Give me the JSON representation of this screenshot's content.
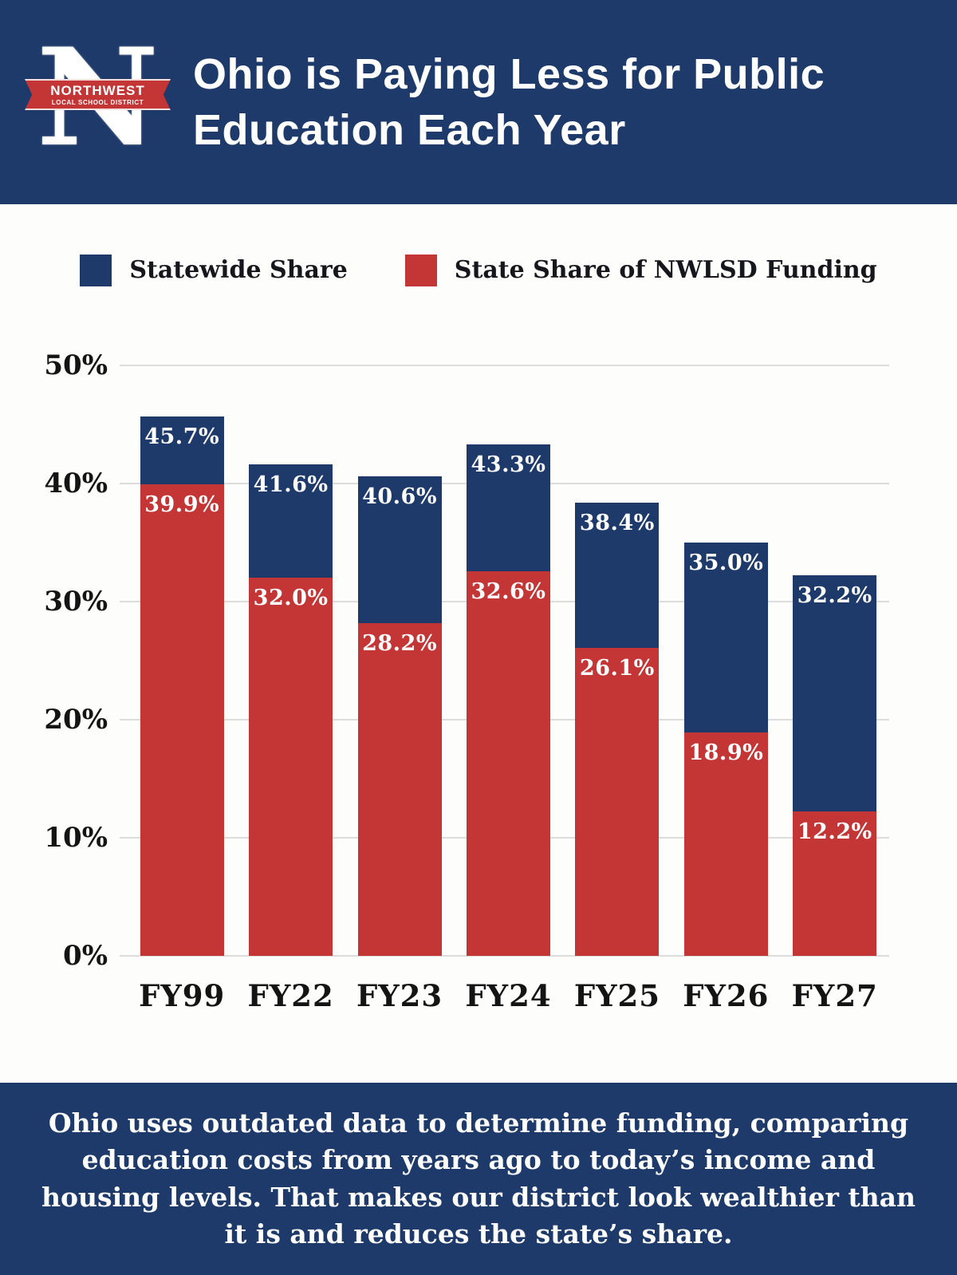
{
  "header": {
    "title_line1": "Ohio is Paying Less for Public",
    "title_line2": "Education Each Year",
    "logo": {
      "letter": "N",
      "ribbon_line1": "NORTHWEST",
      "ribbon_line2": "LOCAL SCHOOL DISTRICT"
    }
  },
  "chart_data": {
    "type": "bar",
    "stacked": true,
    "title": "Ohio is Paying Less for Public Education Each Year",
    "categories": [
      "FY99",
      "FY22",
      "FY23",
      "FY24",
      "FY25",
      "FY26",
      "FY27"
    ],
    "series": [
      {
        "name": "Statewide Share",
        "color": "#1e3a6a",
        "values": [
          45.7,
          41.6,
          40.6,
          43.3,
          38.4,
          35.0,
          32.2
        ]
      },
      {
        "name": "State Share of NWLSD Funding",
        "color": "#c43536",
        "values": [
          39.9,
          32.0,
          28.2,
          32.6,
          26.1,
          18.9,
          12.2
        ]
      }
    ],
    "value_label_suffix": "%",
    "y_ticks": [
      "50%",
      "40%",
      "30%",
      "20%",
      "10%",
      "0%"
    ],
    "ylim": [
      0,
      50
    ],
    "grid": true,
    "legend_position": "top"
  },
  "footer": {
    "text": "Ohio uses outdated data to determine funding, comparing education costs from years ago to today’s income and housing levels. That makes our district look wealthier than it is and reduces the state’s share."
  },
  "colors": {
    "navy": "#1e3a6a",
    "red": "#c43536",
    "grid": "#dcdcdc",
    "text_dark": "#16161d",
    "background": "#fdfdfb"
  }
}
